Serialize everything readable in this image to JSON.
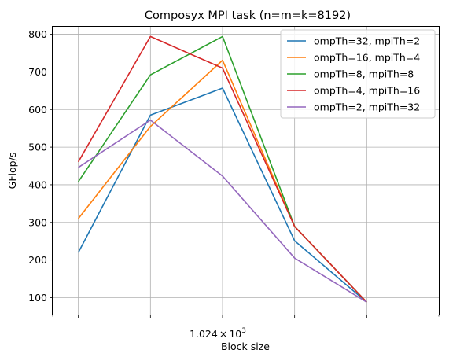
{
  "chart_data": {
    "type": "line",
    "title": "Composyx MPI task (n=m=k=8192)",
    "xlabel": "Block size",
    "ylabel": "GFlop/s",
    "x": [
      256,
      512,
      1024,
      2048,
      4096
    ],
    "xlim": [
      200,
      8192
    ],
    "xscale": "log",
    "x_tick_label": {
      "mantissa": "1.024",
      "times": "×",
      "base": "10",
      "exponent": "3"
    },
    "ylim": [
      55,
      820
    ],
    "yticks": [
      100,
      200,
      300,
      400,
      500,
      600,
      700,
      800
    ],
    "grid": true,
    "legend_position": "upper right",
    "series": [
      {
        "name": "ompTh=32, mpiTh=2",
        "color": "#1f77b4",
        "values": [
          220,
          585,
          657,
          251,
          88
        ]
      },
      {
        "name": "ompTh=16, mpiTh=4",
        "color": "#ff7f0e",
        "values": [
          310,
          555,
          731,
          289,
          88
        ]
      },
      {
        "name": "ompTh=8, mpiTh=8",
        "color": "#2ca02c",
        "values": [
          408,
          692,
          794,
          289,
          88
        ]
      },
      {
        "name": "ompTh=4, mpiTh=16",
        "color": "#d62728",
        "values": [
          461,
          794,
          710,
          289,
          88
        ]
      },
      {
        "name": "ompTh=2, mpiTh=32",
        "color": "#9467bd",
        "values": [
          446,
          572,
          423,
          205,
          88
        ]
      }
    ]
  }
}
